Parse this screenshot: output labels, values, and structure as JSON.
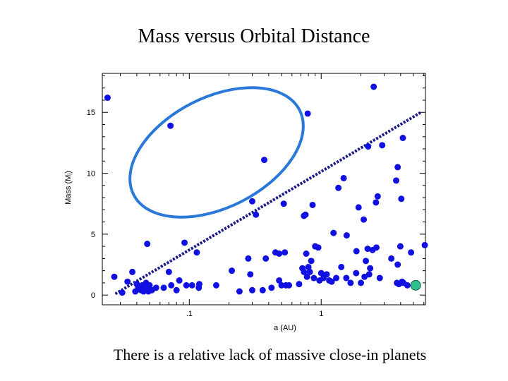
{
  "slide": {
    "title": "Mass versus Orbital Distance",
    "caption": "There is a relative lack of massive close-in planets"
  },
  "chart_data": {
    "type": "scatter",
    "xscale": "log",
    "xlabel": "a (AU)",
    "ylabel": "Mass (Mⱼ)",
    "xlim": [
      0.0219,
      6.17
    ],
    "ylim": [
      -0.8,
      18.2
    ],
    "xticks": [
      {
        "value": 0.1,
        "label": ".1"
      },
      {
        "value": 1,
        "label": "1"
      }
    ],
    "yticks": [
      {
        "value": 0,
        "label": "0"
      },
      {
        "value": 5,
        "label": "5"
      },
      {
        "value": 10,
        "label": "10"
      },
      {
        "value": 15,
        "label": "15"
      }
    ],
    "colors": {
      "points": "#1010e0",
      "highlight": "#2ec08a",
      "ellipse": "#2a78d8",
      "trend": "#1a1a8a",
      "frame": "#000000"
    },
    "series": [
      {
        "name": "exoplanets",
        "points": [
          [
            0.024,
            16.2
          ],
          [
            0.072,
            13.9
          ],
          [
            0.37,
            11.1
          ],
          [
            0.79,
            14.9
          ],
          [
            2.5,
            17.1
          ],
          [
            0.027,
            1.5
          ],
          [
            0.031,
            0.2
          ],
          [
            0.034,
            1.1
          ],
          [
            0.037,
            1.9
          ],
          [
            0.039,
            0.3
          ],
          [
            0.04,
            0.9
          ],
          [
            0.041,
            0.6
          ],
          [
            0.043,
            0.4
          ],
          [
            0.044,
            0.8
          ],
          [
            0.045,
            0.3
          ],
          [
            0.046,
            0.5
          ],
          [
            0.047,
            1.0
          ],
          [
            0.048,
            0.6
          ],
          [
            0.049,
            0.3
          ],
          [
            0.05,
            0.8
          ],
          [
            0.052,
            0.4
          ],
          [
            0.048,
            4.2
          ],
          [
            0.056,
            0.6
          ],
          [
            0.064,
            0.6
          ],
          [
            0.07,
            1.9
          ],
          [
            0.073,
            0.8
          ],
          [
            0.08,
            0.4
          ],
          [
            0.084,
            1.2
          ],
          [
            0.092,
            4.3
          ],
          [
            0.095,
            0.8
          ],
          [
            0.105,
            0.8
          ],
          [
            0.114,
            3.5
          ],
          [
            0.118,
            0.6
          ],
          [
            0.119,
            0.9
          ],
          [
            0.16,
            0.8
          ],
          [
            0.21,
            2.0
          ],
          [
            0.24,
            0.3
          ],
          [
            0.28,
            3.0
          ],
          [
            0.29,
            1.7
          ],
          [
            0.3,
            0.4
          ],
          [
            0.3,
            7.7
          ],
          [
            0.32,
            6.6
          ],
          [
            0.36,
            0.4
          ],
          [
            0.38,
            3.0
          ],
          [
            0.42,
            0.6
          ],
          [
            0.45,
            3.5
          ],
          [
            0.48,
            3.4
          ],
          [
            0.48,
            1.2
          ],
          [
            0.5,
            0.8
          ],
          [
            0.52,
            7.5
          ],
          [
            0.53,
            3.5
          ],
          [
            0.54,
            0.8
          ],
          [
            0.57,
            0.8
          ],
          [
            0.68,
            0.9
          ],
          [
            0.72,
            2.2
          ],
          [
            0.74,
            1.9
          ],
          [
            0.74,
            6.5
          ],
          [
            0.76,
            6.6
          ],
          [
            0.77,
            3.4
          ],
          [
            0.78,
            1.5
          ],
          [
            0.8,
            2.3
          ],
          [
            0.82,
            1.9
          ],
          [
            0.84,
            2.8
          ],
          [
            0.86,
            7.4
          ],
          [
            0.88,
            1.4
          ],
          [
            0.9,
            4.0
          ],
          [
            0.95,
            3.9
          ],
          [
            0.97,
            1.2
          ],
          [
            1.0,
            1.8
          ],
          [
            1.04,
            1.4
          ],
          [
            1.1,
            1.7
          ],
          [
            1.15,
            1.2
          ],
          [
            1.2,
            1.1
          ],
          [
            1.24,
            5.1
          ],
          [
            1.3,
            1.4
          ],
          [
            1.35,
            8.8
          ],
          [
            1.42,
            2.3
          ],
          [
            1.48,
            9.6
          ],
          [
            1.56,
            4.9
          ],
          [
            1.55,
            1.4
          ],
          [
            1.67,
            1.0
          ],
          [
            1.84,
            1.8
          ],
          [
            1.85,
            3.6
          ],
          [
            1.92,
            7.2
          ],
          [
            2.0,
            1.0
          ],
          [
            2.1,
            6.2
          ],
          [
            2.13,
            1.5
          ],
          [
            2.18,
            2.8
          ],
          [
            2.27,
            12.2
          ],
          [
            2.25,
            3.8
          ],
          [
            2.31,
            1.7
          ],
          [
            2.35,
            2.2
          ],
          [
            2.45,
            3.7
          ],
          [
            2.6,
            7.6
          ],
          [
            2.62,
            3.9
          ],
          [
            2.68,
            8.1
          ],
          [
            2.78,
            1.4
          ],
          [
            2.9,
            12.3
          ],
          [
            3.4,
            3.0
          ],
          [
            3.7,
            9.4
          ],
          [
            3.75,
            1.0
          ],
          [
            3.8,
            2.5
          ],
          [
            3.8,
            10.5
          ],
          [
            3.88,
            0.9
          ],
          [
            3.98,
            4.0
          ],
          [
            4.05,
            7.9
          ],
          [
            4.1,
            1.1
          ],
          [
            4.2,
            1.0
          ],
          [
            4.16,
            12.9
          ],
          [
            4.5,
            0.8
          ],
          [
            4.8,
            3.5
          ],
          [
            6.1,
            4.1
          ]
        ]
      },
      {
        "name": "highlight",
        "points": [
          [
            5.2,
            0.8
          ]
        ]
      }
    ],
    "annotations": [
      {
        "type": "ellipse",
        "label": "massive close-in planets outlier region"
      },
      {
        "type": "dotted-line",
        "label": "mass upper envelope",
        "from": [
          0.0275,
          0.1
        ],
        "to": [
          5.7,
          15.0
        ]
      }
    ]
  }
}
